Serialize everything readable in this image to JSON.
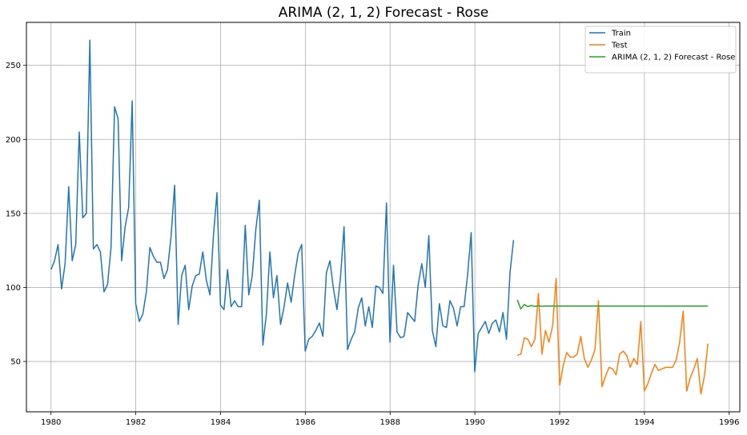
{
  "chart_data": {
    "type": "line",
    "title": "ARIMA (2, 1, 2) Forecast - Rose",
    "xlabel": "",
    "ylabel": "",
    "xlim": [
      1979.42,
      1996.25
    ],
    "ylim": [
      16,
      279
    ],
    "grid": true,
    "legend_position": "top-right",
    "x_ticks": [
      1980,
      1982,
      1984,
      1986,
      1988,
      1990,
      1992,
      1994,
      1996
    ],
    "y_ticks": [
      50,
      100,
      150,
      200,
      250
    ],
    "series": [
      {
        "name": "Train",
        "color": "#1f77b4",
        "start": 1980.0,
        "step": 0.0833,
        "values": [
          112,
          118,
          129,
          99,
          116,
          168,
          118,
          129,
          205,
          147,
          150,
          267,
          126,
          129,
          124,
          97,
          102,
          127,
          222,
          214,
          118,
          141,
          154,
          226,
          89,
          77,
          82,
          97,
          127,
          121,
          117,
          117,
          106,
          112,
          134,
          169,
          75,
          108,
          115,
          85,
          101,
          108,
          109,
          124,
          105,
          95,
          135,
          164,
          88,
          85,
          112,
          87,
          91,
          87,
          87,
          142,
          95,
          108,
          139,
          159,
          61,
          82,
          124,
          93,
          108,
          75,
          87,
          103,
          90,
          108,
          123,
          129,
          57,
          65,
          67,
          71,
          76,
          67,
          110,
          118,
          99,
          85,
          107,
          141,
          58,
          65,
          70,
          86,
          93,
          74,
          87,
          73,
          101,
          100,
          96,
          157,
          63,
          115,
          70,
          66,
          67,
          83,
          80,
          77,
          102,
          116,
          100,
          135,
          71,
          60,
          89,
          74,
          73,
          91,
          86,
          74,
          87,
          87,
          109,
          137,
          43,
          69,
          73,
          77,
          69,
          76,
          78,
          70,
          83,
          65,
          110,
          132
        ]
      },
      {
        "name": "Test",
        "color": "#ff7f0e",
        "start": 1991.0,
        "step": 0.0833,
        "values": [
          54,
          55,
          66,
          65,
          60,
          65,
          96,
          55,
          71,
          63,
          74,
          106,
          34,
          47,
          56,
          53,
          53,
          55,
          67,
          52,
          46,
          51,
          58,
          91,
          33,
          40,
          46,
          45,
          41,
          55,
          57,
          54,
          46,
          52,
          48,
          77,
          30,
          35,
          42,
          48,
          44,
          45,
          46,
          46,
          46,
          51,
          63,
          84,
          30,
          39,
          45,
          52,
          28,
          40,
          62
        ]
      },
      {
        "name": "ARIMA (2, 1, 2) Forecast - Rose",
        "color": "#2ca02c",
        "start": 1991.0,
        "step": 0.0833,
        "values": [
          91.5,
          85.5,
          88.5,
          87.0,
          87.8,
          87.2,
          87.6,
          87.3,
          87.5,
          87.4,
          87.5,
          87.4,
          87.5,
          87.4,
          87.5,
          87.4,
          87.5,
          87.4,
          87.5,
          87.4,
          87.5,
          87.4,
          87.5,
          87.4,
          87.4,
          87.4,
          87.4,
          87.4,
          87.4,
          87.4,
          87.4,
          87.4,
          87.4,
          87.4,
          87.4,
          87.4,
          87.4,
          87.4,
          87.4,
          87.4,
          87.4,
          87.4,
          87.4,
          87.4,
          87.4,
          87.4,
          87.4,
          87.4,
          87.4,
          87.4,
          87.4,
          87.4,
          87.4,
          87.4,
          87.4
        ]
      }
    ]
  }
}
